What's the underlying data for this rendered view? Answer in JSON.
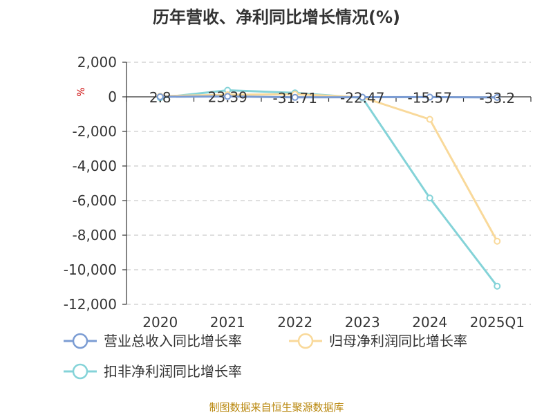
{
  "chart_data": {
    "type": "line",
    "title": "历年营收、净利同比增长情况(%)",
    "y_unit_label": "%",
    "categories": [
      "2020",
      "2021",
      "2022",
      "2023",
      "2024",
      "2025Q1"
    ],
    "ylim": [
      -12000,
      2000
    ],
    "yticks": [
      2000,
      0,
      -2000,
      -4000,
      -6000,
      -8000,
      -10000,
      -12000
    ],
    "ytick_labels": [
      "2,000",
      "0",
      "-2,000",
      "-4,000",
      "-6,000",
      "-8,000",
      "-10,000",
      "-12,000"
    ],
    "grid": true,
    "legend_position": "bottom",
    "series": [
      {
        "name": "营业总收入同比增长率",
        "color": "#7b9cd3",
        "values": [
          2.8,
          23.39,
          -31.71,
          -22.47,
          -15.57,
          -33.2
        ],
        "data_labels": [
          "2.8",
          "23.39",
          "-31.71",
          "-22.47",
          "-15.57",
          "-33.2"
        ]
      },
      {
        "name": "归母净利润同比增长率",
        "color": "#f9d99a",
        "values": [
          40,
          120,
          150,
          -30,
          -1300,
          -8350
        ]
      },
      {
        "name": "扣非净利润同比增长率",
        "color": "#84d3d8",
        "values": [
          -50,
          380,
          230,
          -60,
          -5850,
          -10950
        ]
      }
    ],
    "source": "制图数据来自恒生聚源数据库"
  }
}
